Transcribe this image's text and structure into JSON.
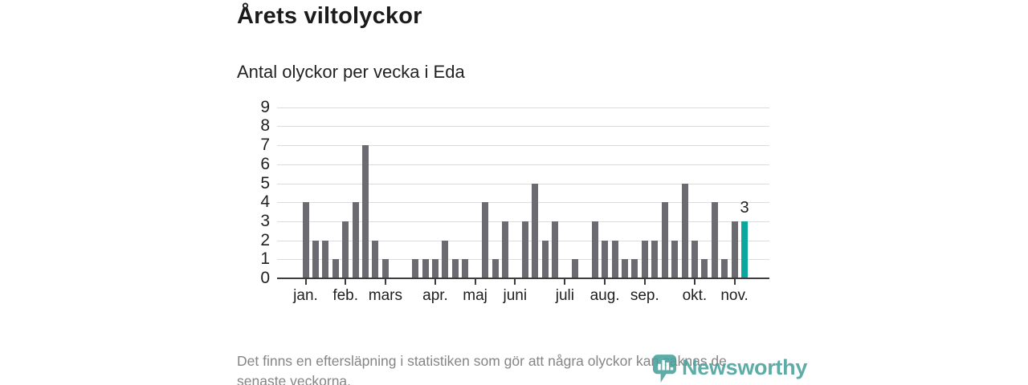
{
  "header": {
    "title": "Årets viltolyckor",
    "subtitle": "Antal olyckor per vecka i Eda"
  },
  "chart_data": {
    "type": "bar",
    "title": "Årets viltolyckor",
    "subtitle": "Antal olyckor per vecka i Eda",
    "x_unit": "vecka (week of year)",
    "weeks": [
      1,
      2,
      3,
      4,
      5,
      6,
      7,
      8,
      9,
      10,
      11,
      12,
      13,
      14,
      15,
      16,
      17,
      18,
      19,
      20,
      21,
      22,
      23,
      24,
      25,
      26,
      27,
      28,
      29,
      30,
      31,
      32,
      33,
      34,
      35,
      36,
      37,
      38,
      39,
      40,
      41,
      42,
      43,
      44,
      45
    ],
    "values": [
      4,
      2,
      2,
      1,
      3,
      4,
      7,
      2,
      1,
      0,
      0,
      1,
      1,
      1,
      2,
      1,
      1,
      0,
      4,
      1,
      3,
      0,
      3,
      5,
      2,
      3,
      0,
      1,
      0,
      3,
      2,
      2,
      1,
      1,
      2,
      2,
      4,
      2,
      5,
      2,
      1,
      4,
      1,
      3,
      3
    ],
    "ylim": [
      0,
      9
    ],
    "yticks": [
      0,
      1,
      2,
      3,
      4,
      5,
      6,
      7,
      8,
      9
    ],
    "grid": true,
    "month_ticks": [
      {
        "label": "jan.",
        "week_index": 0
      },
      {
        "label": "feb.",
        "week_index": 4
      },
      {
        "label": "mars",
        "week_index": 8
      },
      {
        "label": "apr.",
        "week_index": 13
      },
      {
        "label": "maj",
        "week_index": 17
      },
      {
        "label": "juni",
        "week_index": 21
      },
      {
        "label": "juli",
        "week_index": 26
      },
      {
        "label": "aug.",
        "week_index": 30
      },
      {
        "label": "sep.",
        "week_index": 34
      },
      {
        "label": "okt.",
        "week_index": 39
      },
      {
        "label": "nov.",
        "week_index": 43
      }
    ],
    "highlight_last_bar": true,
    "last_value_label": "3",
    "bar_color": "#6b6b71",
    "highlight_color": "#0aa79e",
    "gridline_color": "#dcdcdc",
    "axis_color": "#3d3d3d",
    "label_color": "#1f1f1f"
  },
  "footer": {
    "note_lines": [
      "Det finns en eftersläpning i statistiken som gör att några olyckor kan saknas de",
      "senaste veckorna."
    ]
  },
  "logo": {
    "text": "Newsworthy",
    "color": "#47a19c"
  }
}
